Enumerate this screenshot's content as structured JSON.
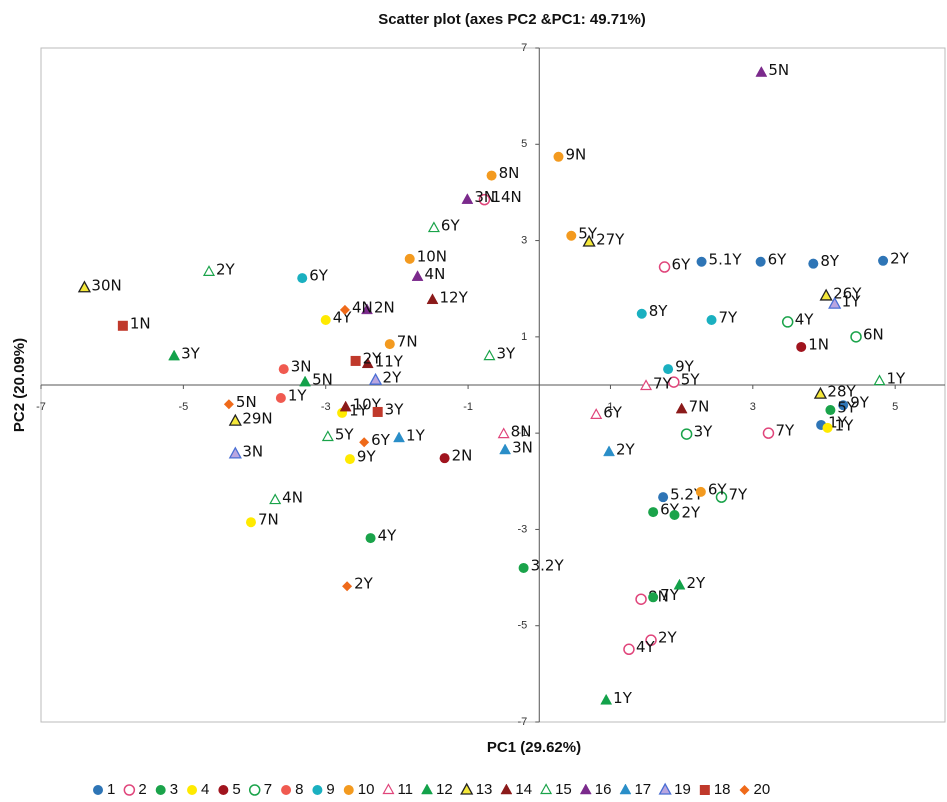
{
  "chart_data": {
    "type": "scatter",
    "title": "Scatter plot (axes PC2 &PC1: 49.71%)",
    "x_label": "PC1 (29.62%)",
    "y_label": "PC2 (20.09%)",
    "xlim": [
      -7,
      5.7
    ],
    "ylim": [
      -7,
      7
    ],
    "xticks": [
      -7,
      -5,
      -3,
      -1,
      1,
      3,
      5
    ],
    "yticks": [
      -7,
      -5,
      -3,
      -1,
      1,
      3,
      5,
      7
    ],
    "series": [
      {
        "name": "1",
        "color": "#2e75b6",
        "marker": "circle",
        "x": [
          2.28,
          3.11,
          3.85,
          4.83,
          4.27,
          3.96,
          1.74
        ],
        "y": [
          2.56,
          2.56,
          2.52,
          2.58,
          -0.42,
          -0.83,
          -2.33
        ],
        "labels": [
          "5.1Y",
          "6Y",
          "8Y",
          "2Y",
          "9Y",
          "1Y",
          "5.2Y"
        ]
      },
      {
        "name": "2",
        "color": "#e0457b",
        "marker": "open-circle",
        "x": [
          -0.77,
          1.76,
          1.89,
          3.22,
          1.43,
          1.57,
          1.26
        ],
        "y": [
          3.85,
          2.45,
          0.06,
          -1.0,
          -4.45,
          -5.3,
          -5.49
        ],
        "labels": [
          "14N",
          "6Y",
          "5Y",
          "7Y",
          "8N",
          "2Y",
          "4Y"
        ]
      },
      {
        "name": "3",
        "color": "#1aa34a",
        "marker": "circle",
        "x": [
          -0.22,
          -2.37,
          1.6,
          1.9,
          1.6,
          4.09
        ],
        "y": [
          -3.8,
          -3.18,
          -2.64,
          -2.7,
          -4.41,
          -0.52
        ],
        "labels": [
          "3.2Y",
          "4Y",
          "6Y",
          "2Y",
          "7Y",
          "5Y"
        ]
      },
      {
        "name": "4",
        "color": "#ffea00",
        "marker": "circle",
        "x": [
          -3.0,
          -2.77,
          -2.66,
          -4.05,
          4.05
        ],
        "y": [
          1.35,
          -0.58,
          -1.54,
          -2.85,
          -0.89
        ],
        "labels": [
          "4Y",
          "1Y",
          "9Y",
          "7N",
          "1Y"
        ]
      },
      {
        "name": "5",
        "color": "#a0141e",
        "marker": "circle",
        "x": [
          3.68,
          -1.33
        ],
        "y": [
          0.79,
          -1.52
        ],
        "labels": [
          "1N",
          "2N"
        ]
      },
      {
        "name": "7",
        "color": "#1aa34a",
        "marker": "open-circle",
        "x": [
          3.49,
          4.45,
          2.07,
          2.56
        ],
        "y": [
          1.31,
          1.0,
          -1.02,
          -2.33
        ],
        "labels": [
          "4Y",
          "6N",
          "3Y",
          "7Y"
        ]
      },
      {
        "name": "8",
        "color": "#f05a50",
        "marker": "circle",
        "x": [
          -3.59,
          -3.63
        ],
        "y": [
          0.33,
          -0.27
        ],
        "labels": [
          "3N",
          "1Y"
        ]
      },
      {
        "name": "9",
        "color": "#1ab0c0",
        "marker": "circle",
        "x": [
          -3.33,
          1.44,
          2.42,
          1.81
        ],
        "y": [
          2.22,
          1.48,
          1.35,
          0.33
        ],
        "labels": [
          "6Y",
          "8Y",
          "7Y",
          "9Y"
        ]
      },
      {
        "name": "10",
        "color": "#f39a1f",
        "marker": "circle",
        "x": [
          -0.67,
          0.27,
          0.45,
          -1.82,
          -2.1,
          2.27
        ],
        "y": [
          4.35,
          4.74,
          3.1,
          2.62,
          0.85,
          -2.22
        ],
        "labels": [
          "8N",
          "9N",
          "5Y",
          "10N",
          "7N",
          "6Y"
        ]
      },
      {
        "name": "11",
        "color": "#e0457b",
        "marker": "open-triangle",
        "x": [
          1.5,
          0.8,
          -0.5
        ],
        "y": [
          -0.02,
          -0.62,
          -1.02
        ],
        "labels": [
          "7Y",
          "6Y",
          "8N"
        ]
      },
      {
        "name": "12",
        "color": "#13a24a",
        "marker": "triangle",
        "x": [
          -5.13,
          -3.29,
          1.97,
          0.94
        ],
        "y": [
          0.6,
          0.06,
          -4.16,
          -6.55
        ],
        "labels": [
          "3Y",
          "5N",
          "2Y",
          "1Y"
        ]
      },
      {
        "name": "13",
        "color": "#f5e83a",
        "edgecolor": "#222222",
        "marker": "triangle",
        "x": [
          -6.39,
          0.7,
          4.03,
          3.95,
          -4.27
        ],
        "y": [
          2.02,
          2.97,
          1.85,
          -0.19,
          -0.75
        ],
        "labels": [
          "30N",
          "27Y",
          "26Y",
          "28Y",
          "29N"
        ]
      },
      {
        "name": "14",
        "color": "#8b1a1a",
        "marker": "triangle",
        "x": [
          -1.5,
          -2.41,
          -2.72,
          2.0
        ],
        "y": [
          1.77,
          0.44,
          -0.46,
          -0.5
        ],
        "labels": [
          "12Y",
          "11Y",
          "10Y",
          "7N"
        ]
      },
      {
        "name": "15",
        "color": "#1aa34a",
        "marker": "open-triangle",
        "x": [
          -4.64,
          -1.48,
          -0.7,
          -2.97,
          -3.71,
          4.78
        ],
        "y": [
          2.35,
          3.26,
          0.6,
          -1.08,
          -2.39,
          0.08
        ],
        "labels": [
          "2Y",
          "6Y",
          "3Y",
          "5Y",
          "4N",
          "1Y"
        ]
      },
      {
        "name": "16",
        "color": "#7b2a8c",
        "marker": "triangle",
        "x": [
          3.12,
          -1.01,
          -1.71,
          -2.42
        ],
        "y": [
          6.49,
          3.85,
          2.25,
          1.56
        ],
        "labels": [
          "5N",
          "3N",
          "4N",
          "2N"
        ]
      },
      {
        "name": "17",
        "color": "#2a8ec8",
        "marker": "triangle",
        "x": [
          -0.48,
          0.98,
          -1.97
        ],
        "y": [
          -1.35,
          -1.39,
          -1.1
        ],
        "labels": [
          "3N",
          "2Y",
          "1Y"
        ]
      },
      {
        "name": "19",
        "color": "#b9a6e0",
        "edgecolor": "#4a6fd4",
        "marker": "triangle",
        "x": [
          -4.27,
          -2.3,
          4.15
        ],
        "y": [
          -1.43,
          0.1,
          1.68
        ],
        "labels": [
          "3N",
          "2Y",
          "1Y"
        ]
      },
      {
        "name": "18",
        "color": "#c0392b",
        "marker": "square",
        "x": [
          -5.85,
          -2.58,
          -2.27
        ],
        "y": [
          1.23,
          0.5,
          -0.56
        ],
        "labels": [
          "1N",
          "2Y",
          "3Y"
        ]
      },
      {
        "name": "20",
        "color": "#ef6a1a",
        "marker": "diamond",
        "x": [
          -4.36,
          -2.73,
          -2.46,
          -2.7
        ],
        "y": [
          -0.4,
          1.56,
          -1.19,
          -4.18
        ],
        "labels": [
          "5N",
          "4N",
          "6Y",
          "2Y"
        ]
      }
    ]
  }
}
